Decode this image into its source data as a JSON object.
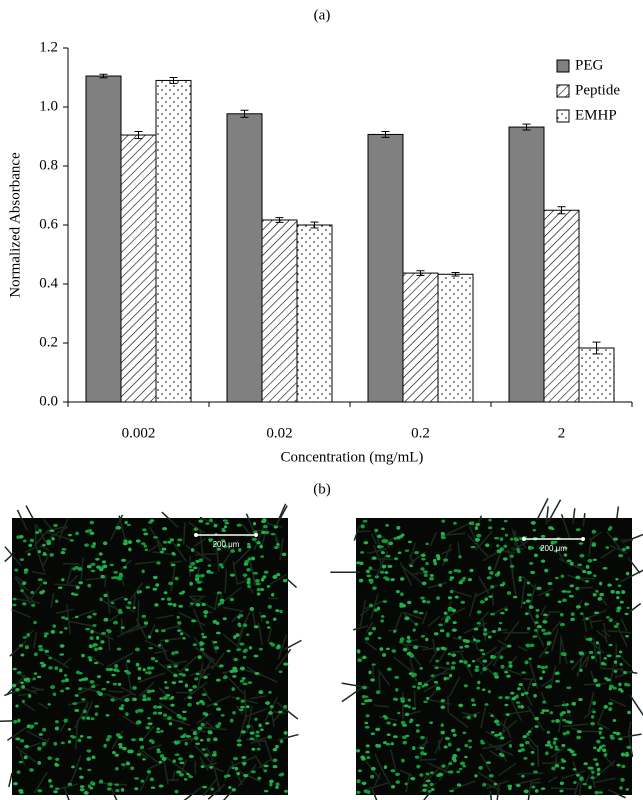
{
  "figure": {
    "panel_a": "(a)",
    "panel_b": "(b)",
    "images": [
      {
        "scale_bar": "200 μm"
      },
      {
        "scale_bar": "200 μm"
      }
    ]
  },
  "chart_data": {
    "type": "bar",
    "y_label": "Normalized Absorbance",
    "x_label": "Concentration (mg/mL)",
    "categories": [
      "0.002",
      "0.02",
      "0.2",
      "2"
    ],
    "series": [
      {
        "name": "PEG",
        "color": "#808080",
        "pattern": "solid",
        "values": [
          1.105,
          0.977,
          0.907,
          0.932
        ],
        "errors": [
          0.006,
          0.012,
          0.01,
          0.01
        ]
      },
      {
        "name": "Peptide",
        "color": "#ffffff",
        "pattern": "hatch",
        "values": [
          0.905,
          0.617,
          0.437,
          0.65
        ],
        "errors": [
          0.012,
          0.008,
          0.008,
          0.012
        ]
      },
      {
        "name": "EMHP",
        "color": "#ffffff",
        "pattern": "dots",
        "values": [
          1.09,
          0.6,
          0.433,
          0.183
        ],
        "errors": [
          0.01,
          0.01,
          0.006,
          0.02
        ]
      }
    ],
    "ylim": [
      0,
      1.2
    ],
    "yticks": [
      {
        "value": 0,
        "label": "0.0"
      },
      0.2,
      0.4,
      0.6,
      0.8,
      {
        "value": 1,
        "label": "1.0"
      },
      1.2
    ],
    "grid": false,
    "legend": "upper right",
    "error_bars": true
  }
}
